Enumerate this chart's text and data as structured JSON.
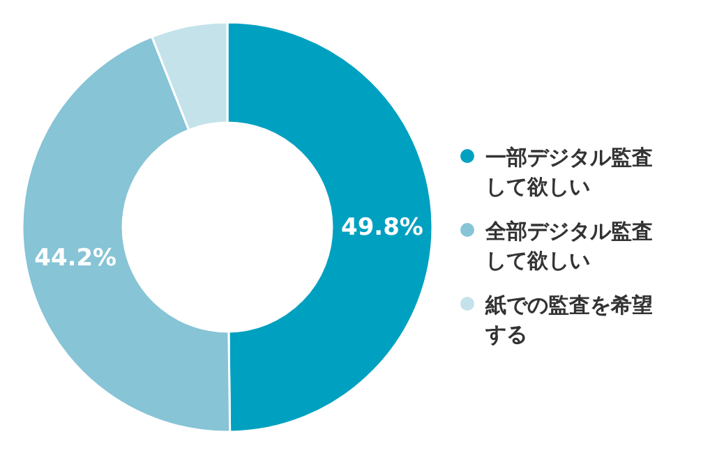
{
  "chart_data": {
    "type": "donut",
    "categories": [
      "一部デジタル監査して欲しい",
      "全部デジタル監査して欲しい",
      "紙での監査を希望する"
    ],
    "values": [
      49.8,
      44.2,
      6.0
    ],
    "colors": [
      "#00a0c0",
      "#86c4d6",
      "#c4e2ea"
    ],
    "value_labels": [
      "49.8%",
      "44.2%",
      null
    ],
    "legend": "right"
  }
}
